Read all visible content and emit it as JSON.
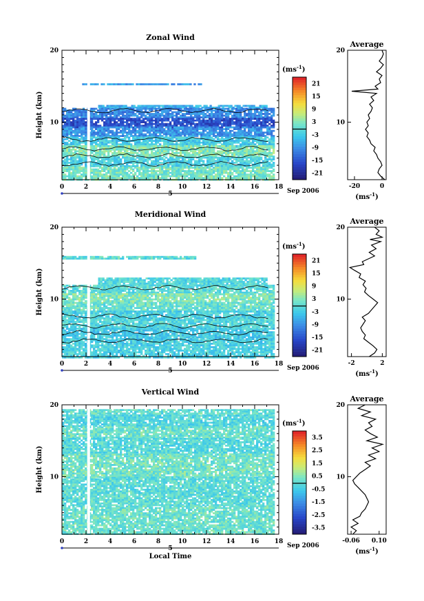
{
  "chart_data": [
    {
      "type": "heatmap",
      "title": "Zonal Wind",
      "ylabel": "Height (km)",
      "xlabel": "",
      "x_ticks": [
        "0",
        "2",
        "4",
        "6",
        "8",
        "10",
        "12",
        "14",
        "16",
        "18"
      ],
      "y_ticks": [
        "10",
        "20"
      ],
      "xlim": [
        0,
        18
      ],
      "ylim": [
        2,
        20
      ],
      "date_label": "Sep 2006",
      "day_label": "5",
      "colorbar": {
        "unit": "(ms",
        "unit_exp": "-1",
        "unit_close": ")",
        "ticks": [
          "21",
          "15",
          "9",
          "3",
          "-3",
          "-9",
          "-15",
          "-21"
        ],
        "range": [
          -24,
          24
        ]
      },
      "bands": [
        {
          "h0": 15.2,
          "h1": 15.4,
          "t0": 1.5,
          "t1": 11.5,
          "v": -8
        },
        {
          "h0": 12.0,
          "h1": 12.4,
          "t0": 3,
          "t1": 17,
          "v": -6
        },
        {
          "h0": 10.6,
          "h1": 12.0,
          "t0": 0,
          "t1": 17.5,
          "v": -10
        },
        {
          "h0": 9.4,
          "h1": 10.6,
          "t0": 0,
          "t1": 17.5,
          "v": -16
        },
        {
          "h0": 8.0,
          "h1": 9.4,
          "t0": 0,
          "t1": 17.5,
          "v": -9
        },
        {
          "h0": 6.8,
          "h1": 8.0,
          "t0": 0,
          "t1": 17.5,
          "v": -3
        },
        {
          "h0": 5.2,
          "h1": 6.8,
          "t0": 0,
          "t1": 17.5,
          "v": 3
        },
        {
          "h0": 3.8,
          "h1": 5.2,
          "t0": 0,
          "t1": 17.5,
          "v": -2
        },
        {
          "h0": 2.0,
          "h1": 3.8,
          "t0": 0,
          "t1": 17.5,
          "v": 2
        }
      ],
      "average": {
        "title": "Average",
        "x_ticks": [
          "-20",
          "0"
        ],
        "xlim": [
          -25,
          3
        ],
        "unit": "(ms",
        "unit_exp": "-1",
        "unit_close": ")",
        "profile": [
          [
            2,
            2
          ],
          [
            2.5,
            -1
          ],
          [
            3,
            -3
          ],
          [
            3.5,
            -2
          ],
          [
            4,
            0
          ],
          [
            4.5,
            -1
          ],
          [
            5,
            -3
          ],
          [
            5.5,
            -4
          ],
          [
            6,
            -6
          ],
          [
            6.5,
            -5
          ],
          [
            7,
            -8
          ],
          [
            7.5,
            -9
          ],
          [
            8,
            -11
          ],
          [
            8.5,
            -10
          ],
          [
            9,
            -12
          ],
          [
            9.5,
            -10
          ],
          [
            10,
            -11
          ],
          [
            10.5,
            -9
          ],
          [
            11,
            -10
          ],
          [
            11.5,
            -8
          ],
          [
            12,
            -7
          ],
          [
            12.5,
            -9
          ],
          [
            13,
            -6
          ],
          [
            13.5,
            -8
          ],
          [
            14,
            -4
          ],
          [
            14.3,
            -22
          ],
          [
            14.6,
            -3
          ],
          [
            15,
            -5
          ],
          [
            15.5,
            -1
          ],
          [
            16,
            -2
          ],
          [
            16.5,
            0
          ],
          [
            17,
            -4
          ],
          [
            17.5,
            -1
          ],
          [
            18,
            1
          ],
          [
            18.5,
            -2
          ],
          [
            19,
            0
          ],
          [
            19.5,
            1
          ],
          [
            20,
            0
          ]
        ]
      }
    },
    {
      "type": "heatmap",
      "title": "Meridional Wind",
      "ylabel": "Height (km)",
      "xlabel": "",
      "x_ticks": [
        "0",
        "2",
        "4",
        "6",
        "8",
        "10",
        "12",
        "14",
        "16",
        "18"
      ],
      "y_ticks": [
        "10",
        "20"
      ],
      "xlim": [
        0,
        18
      ],
      "ylim": [
        2,
        20
      ],
      "date_label": "Sep 2006",
      "day_label": "5",
      "colorbar": {
        "unit": "(ms",
        "unit_exp": "-1",
        "unit_close": ")",
        "ticks": [
          "21",
          "15",
          "9",
          "3",
          "-3",
          "-9",
          "-15",
          "-21"
        ],
        "range": [
          -24,
          24
        ]
      },
      "bands": [
        {
          "h0": 15.6,
          "h1": 16.0,
          "t0": 0,
          "t1": 11,
          "v": 0
        },
        {
          "h0": 12.0,
          "h1": 13.0,
          "t0": 3,
          "t1": 17,
          "v": -1
        },
        {
          "h0": 10.8,
          "h1": 12.0,
          "t0": 0,
          "t1": 17.5,
          "v": 0
        },
        {
          "h0": 9.6,
          "h1": 10.8,
          "t0": 0,
          "t1": 17.5,
          "v": 3
        },
        {
          "h0": 8.4,
          "h1": 9.6,
          "t0": 0,
          "t1": 17.5,
          "v": 1
        },
        {
          "h0": 7.2,
          "h1": 8.4,
          "t0": 0,
          "t1": 17.5,
          "v": -2
        },
        {
          "h0": 6.0,
          "h1": 7.2,
          "t0": 0,
          "t1": 17.5,
          "v": -1
        },
        {
          "h0": 4.4,
          "h1": 6.0,
          "t0": 0,
          "t1": 17.5,
          "v": -3
        },
        {
          "h0": 2.0,
          "h1": 4.4,
          "t0": 0,
          "t1": 17.5,
          "v": -2
        }
      ],
      "average": {
        "title": "Average",
        "x_ticks": [
          "-2",
          "2"
        ],
        "xlim": [
          -2.5,
          2.5
        ],
        "unit": "(ms",
        "unit_exp": "-1",
        "unit_close": ")",
        "profile": [
          [
            2,
            0.3
          ],
          [
            2.5,
            1.0
          ],
          [
            3,
            1.3
          ],
          [
            3.5,
            0.8
          ],
          [
            4,
            0.2
          ],
          [
            4.5,
            -0.4
          ],
          [
            5,
            -0.2
          ],
          [
            5.5,
            -0.6
          ],
          [
            6,
            -0.8
          ],
          [
            6.5,
            -0.5
          ],
          [
            7,
            -0.2
          ],
          [
            7.5,
            -0.6
          ],
          [
            8,
            0.2
          ],
          [
            8.5,
            0.6
          ],
          [
            9,
            1.0
          ],
          [
            9.5,
            1.4
          ],
          [
            10,
            0.8
          ],
          [
            10.5,
            0.2
          ],
          [
            11,
            -0.3
          ],
          [
            11.5,
            -0.1
          ],
          [
            12,
            -0.5
          ],
          [
            12.5,
            -0.2
          ],
          [
            13,
            -1.0
          ],
          [
            13.5,
            -0.8
          ],
          [
            14,
            -1.6
          ],
          [
            14.4,
            -2.2
          ],
          [
            14.8,
            -0.4
          ],
          [
            15.2,
            -0.6
          ],
          [
            15.6,
            0.2
          ],
          [
            16,
            1.0
          ],
          [
            16.5,
            0.3
          ],
          [
            17,
            1.2
          ],
          [
            17.5,
            0.6
          ],
          [
            18,
            1.8
          ],
          [
            18.3,
            0.4
          ],
          [
            18.6,
            2.0
          ],
          [
            19,
            1.2
          ],
          [
            19.5,
            1.6
          ],
          [
            20,
            1.0
          ]
        ]
      }
    },
    {
      "type": "heatmap",
      "title": "Vertical Wind",
      "ylabel": "Height (km)",
      "xlabel": "Local Time",
      "x_ticks": [
        "0",
        "2",
        "4",
        "6",
        "8",
        "10",
        "12",
        "14",
        "16",
        "18"
      ],
      "y_ticks": [
        "10",
        "20"
      ],
      "xlim": [
        0,
        18
      ],
      "ylim": [
        2,
        20
      ],
      "date_label": "Sep 2006",
      "day_label": "5",
      "colorbar": {
        "unit": "(ms",
        "unit_exp": "-1",
        "unit_close": ")",
        "ticks": [
          "3.5",
          "2.5",
          "1.5",
          "0.5",
          "-0.5",
          "-1.5",
          "-2.5",
          "-3.5"
        ],
        "range": [
          -4,
          4
        ]
      },
      "bands": [
        {
          "h0": 18.6,
          "h1": 19.4,
          "t0": 0,
          "t1": 17.5,
          "v": 0.1
        },
        {
          "h0": 17.0,
          "h1": 18.6,
          "t0": 0,
          "t1": 17.5,
          "v": -0.2
        },
        {
          "h0": 15.4,
          "h1": 17.0,
          "t0": 0,
          "t1": 17.5,
          "v": 0.2
        },
        {
          "h0": 13.2,
          "h1": 15.4,
          "t0": 0,
          "t1": 17.5,
          "v": -0.1
        },
        {
          "h0": 10.0,
          "h1": 13.2,
          "t0": 0,
          "t1": 17.5,
          "v": 0.3
        },
        {
          "h0": 6.0,
          "h1": 10.0,
          "t0": 0,
          "t1": 17.5,
          "v": 0.0
        },
        {
          "h0": 2.0,
          "h1": 6.0,
          "t0": 0,
          "t1": 17.5,
          "v": 0.2
        }
      ],
      "average": {
        "title": "Average",
        "x_ticks": [
          "-0.06",
          "0.10"
        ],
        "xlim": [
          -0.08,
          0.14
        ],
        "unit": "(ms",
        "unit_exp": "-1",
        "unit_close": ")",
        "profile": [
          [
            2,
            -0.05
          ],
          [
            2.5,
            -0.03
          ],
          [
            3,
            -0.06
          ],
          [
            3.5,
            -0.02
          ],
          [
            4,
            -0.05
          ],
          [
            4.5,
            -0.01
          ],
          [
            5,
            0.0
          ],
          [
            5.5,
            0.02
          ],
          [
            6,
            0.03
          ],
          [
            6.5,
            0.04
          ],
          [
            7,
            0.03
          ],
          [
            7.5,
            0.02
          ],
          [
            8,
            0.0
          ],
          [
            8.5,
            -0.02
          ],
          [
            9,
            -0.04
          ],
          [
            9.5,
            -0.05
          ],
          [
            10,
            -0.03
          ],
          [
            10.5,
            -0.01
          ],
          [
            11,
            0.02
          ],
          [
            11.5,
            0.05
          ],
          [
            12,
            0.02
          ],
          [
            12.5,
            0.08
          ],
          [
            13,
            0.04
          ],
          [
            13.5,
            0.1
          ],
          [
            14,
            0.06
          ],
          [
            14.5,
            0.12
          ],
          [
            15,
            0.03
          ],
          [
            15.5,
            0.09
          ],
          [
            16,
            0.05
          ],
          [
            16.5,
            0.02
          ],
          [
            17,
            0.06
          ],
          [
            17.5,
            0.04
          ],
          [
            18,
            0.08
          ],
          [
            18.5,
            0.0
          ],
          [
            19,
            0.05
          ],
          [
            19.5,
            -0.02
          ],
          [
            20,
            0.02
          ]
        ]
      }
    }
  ]
}
